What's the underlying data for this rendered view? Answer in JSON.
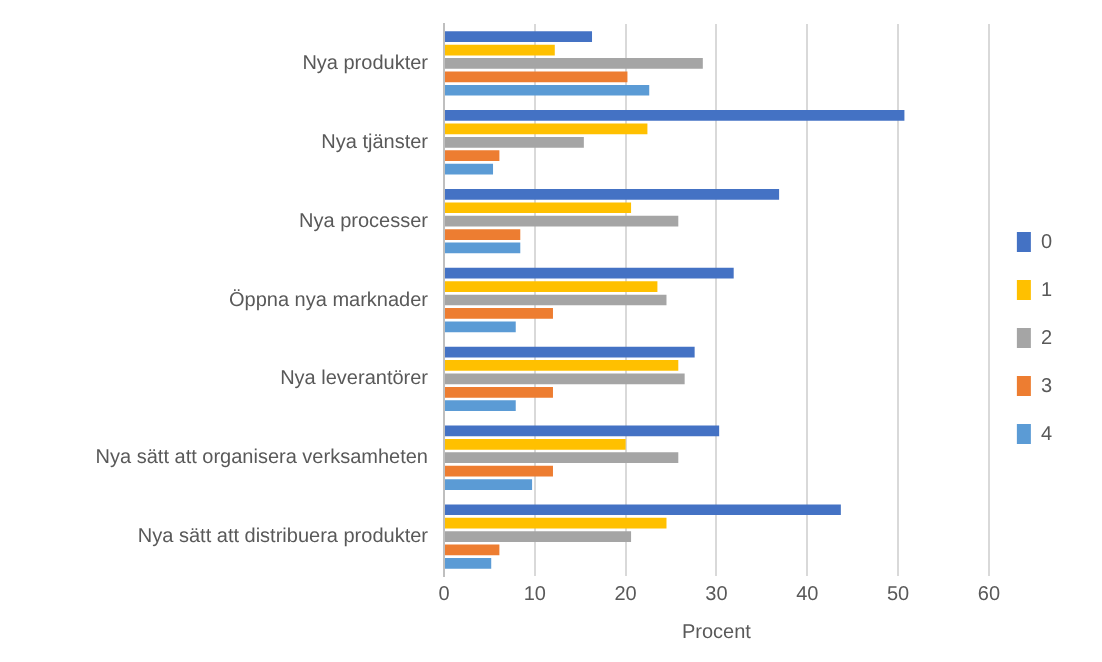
{
  "chart_data": {
    "type": "bar",
    "orientation": "horizontal",
    "xlabel": "Procent",
    "categories": [
      "Nya produkter",
      "Nya tjänster",
      "Nya processer",
      "Öppna nya marknader",
      "Nya leverantörer",
      "Nya sätt att organisera verksamheten",
      "Nya sätt att distribuera produkter"
    ],
    "series": [
      {
        "name": "0",
        "color": "#4472c4",
        "values": [
          16.3,
          50.7,
          36.9,
          31.9,
          27.6,
          30.3,
          43.7
        ]
      },
      {
        "name": "1",
        "color": "#ffc000",
        "values": [
          12.2,
          22.4,
          20.6,
          23.5,
          25.8,
          20.0,
          24.5
        ]
      },
      {
        "name": "2",
        "color": "#a5a5a5",
        "values": [
          28.5,
          15.4,
          25.8,
          24.5,
          26.5,
          25.8,
          20.6
        ]
      },
      {
        "name": "3",
        "color": "#ed7d31",
        "values": [
          20.2,
          6.1,
          8.4,
          12.0,
          12.0,
          12.0,
          6.1
        ]
      },
      {
        "name": "4",
        "color": "#5b9bd5",
        "values": [
          22.6,
          5.4,
          8.4,
          7.9,
          7.9,
          9.7,
          5.2
        ]
      }
    ],
    "xlim": [
      0,
      60
    ],
    "xticks": [
      0,
      10,
      20,
      30,
      40,
      50,
      60
    ],
    "grid": "x",
    "legend": "right"
  }
}
